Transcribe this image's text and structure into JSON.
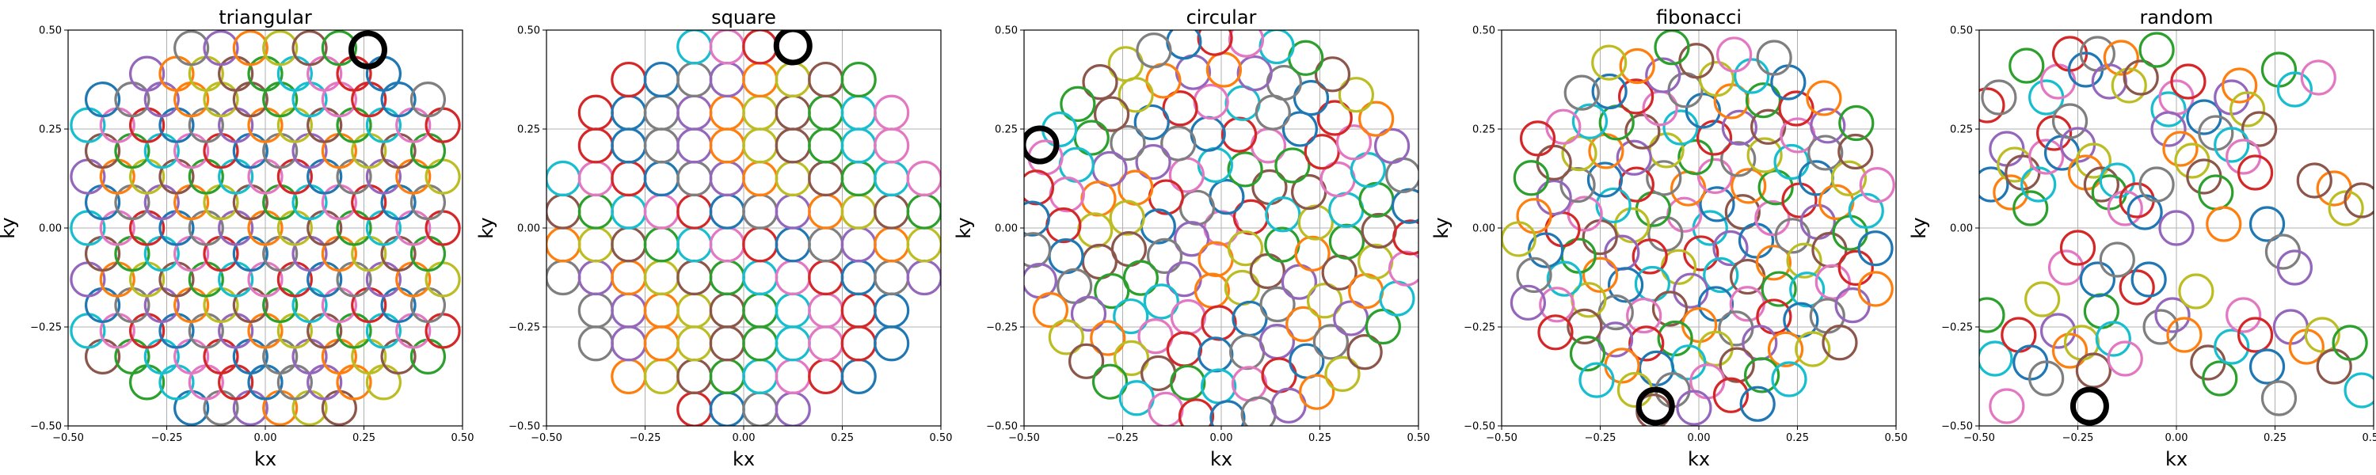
{
  "colors": {
    "cycle": [
      "#1f77b4",
      "#ff7f0e",
      "#2ca02c",
      "#d62728",
      "#9467bd",
      "#8c564b",
      "#e377c2",
      "#7f7f7f",
      "#bcbd22",
      "#17becf"
    ],
    "highlight": "#000000",
    "grid": "#b0b0b0"
  },
  "chart_data": [
    {
      "type": "scatter",
      "marker": "open-circle",
      "title": "triangular",
      "xlabel": "kx",
      "ylabel": "ky",
      "xlim": [
        -0.5,
        0.5
      ],
      "ylim": [
        -0.5,
        0.5
      ],
      "xticks": [
        "−0.50",
        "−0.25",
        "0.00",
        "0.25",
        "0.50"
      ],
      "yticks": [
        "−0.50",
        "−0.25",
        "0.00",
        "0.25",
        "0.50"
      ],
      "grid": true,
      "pattern": "triangular lattice, spacing 0.075, hexagonal window radius 0.45",
      "highlight": [
        0.26,
        0.45
      ]
    },
    {
      "type": "scatter",
      "marker": "open-circle",
      "title": "square",
      "xlabel": "kx",
      "ylabel": "ky",
      "xlim": [
        -0.5,
        0.5
      ],
      "ylim": [
        -0.5,
        0.5
      ],
      "xticks": [
        "−0.50",
        "−0.25",
        "0.00",
        "0.25",
        "0.50"
      ],
      "yticks": [
        "−0.50",
        "−0.25",
        "0.00",
        "0.25",
        "0.50"
      ],
      "grid": true,
      "pattern": "square lattice, spacing 0.083, circular window radius 0.5",
      "highlight": [
        0.125,
        0.46
      ]
    },
    {
      "type": "scatter",
      "marker": "open-circle",
      "title": "circular",
      "xlabel": "kx",
      "ylabel": "ky",
      "xlim": [
        -0.5,
        0.5
      ],
      "ylim": [
        -0.5,
        0.5
      ],
      "xticks": [
        "−0.50",
        "−0.25",
        "0.00",
        "0.25",
        "0.50"
      ],
      "yticks": [
        "−0.50",
        "−0.25",
        "0.00",
        "0.25",
        "0.50"
      ],
      "grid": true,
      "pattern": "concentric rings, radius 0.48",
      "highlight": [
        -0.46,
        0.21
      ]
    },
    {
      "type": "scatter",
      "marker": "open-circle",
      "title": "fibonacci",
      "xlabel": "kx",
      "ylabel": "ky",
      "xlim": [
        -0.5,
        0.5
      ],
      "ylim": [
        -0.5,
        0.5
      ],
      "xticks": [
        "−0.50",
        "−0.25",
        "0.00",
        "0.25",
        "0.50"
      ],
      "yticks": [
        "−0.50",
        "−0.25",
        "0.00",
        "0.25",
        "0.50"
      ],
      "grid": true,
      "pattern": "fibonacci spiral, radius 0.48",
      "highlight": [
        -0.11,
        -0.45
      ]
    },
    {
      "type": "scatter",
      "marker": "open-circle",
      "title": "random",
      "xlabel": "kx",
      "ylabel": "ky",
      "xlim": [
        -0.5,
        0.5
      ],
      "ylim": [
        -0.5,
        0.5
      ],
      "xticks": [
        "−0.50",
        "−0.25",
        "0.00",
        "0.25",
        "0.50"
      ],
      "yticks": [
        "−0.50",
        "−0.25",
        "0.00",
        "0.25",
        "0.50"
      ],
      "grid": true,
      "pattern": "uniform random points",
      "highlight": [
        -0.22,
        -0.45
      ],
      "points": [
        [
          -0.38,
          0.41
        ],
        [
          -0.33,
          0.33
        ],
        [
          -0.3,
          0.37
        ],
        [
          -0.27,
          0.44
        ],
        [
          -0.23,
          0.4
        ],
        [
          -0.2,
          0.44
        ],
        [
          -0.17,
          0.37
        ],
        [
          -0.14,
          0.43
        ],
        [
          -0.12,
          0.36
        ],
        [
          -0.09,
          0.38
        ],
        [
          -0.05,
          0.45
        ],
        [
          -0.02,
          0.3
        ],
        [
          0.0,
          0.33
        ],
        [
          0.03,
          0.37
        ],
        [
          0.07,
          0.28
        ],
        [
          0.1,
          0.24
        ],
        [
          0.14,
          0.33
        ],
        [
          0.16,
          0.36
        ],
        [
          0.18,
          0.3
        ],
        [
          0.21,
          0.25
        ],
        [
          0.26,
          0.4
        ],
        [
          0.3,
          0.35
        ],
        [
          0.36,
          0.38
        ],
        [
          -0.48,
          0.31
        ],
        [
          -0.47,
          0.11
        ],
        [
          -0.45,
          0.33
        ],
        [
          -0.43,
          0.2
        ],
        [
          -0.42,
          0.09
        ],
        [
          -0.41,
          0.16
        ],
        [
          -0.39,
          0.14
        ],
        [
          -0.37,
          0.05
        ],
        [
          -0.35,
          0.11
        ],
        [
          -0.33,
          0.18
        ],
        [
          -0.31,
          0.24
        ],
        [
          -0.29,
          0.19
        ],
        [
          -0.27,
          0.27
        ],
        [
          -0.25,
          0.21
        ],
        [
          -0.23,
          0.14
        ],
        [
          -0.21,
          0.17
        ],
        [
          -0.19,
          0.11
        ],
        [
          -0.17,
          0.09
        ],
        [
          -0.15,
          0.12
        ],
        [
          -0.13,
          0.05
        ],
        [
          -0.1,
          0.07
        ],
        [
          -0.08,
          0.04
        ],
        [
          -0.05,
          0.11
        ],
        [
          -0.02,
          0.25
        ],
        [
          0.01,
          0.2
        ],
        [
          0.04,
          0.17
        ],
        [
          0.07,
          0.13
        ],
        [
          0.1,
          0.09
        ],
        [
          0.14,
          0.21
        ],
        [
          0.17,
          0.18
        ],
        [
          0.2,
          0.14
        ],
        [
          0.23,
          0.01
        ],
        [
          0.27,
          -0.06
        ],
        [
          0.3,
          -0.1
        ],
        [
          0.4,
          0.1
        ],
        [
          0.43,
          0.05
        ],
        [
          0.47,
          0.07
        ],
        [
          -0.48,
          -0.22
        ],
        [
          -0.46,
          -0.33
        ],
        [
          -0.43,
          -0.45
        ],
        [
          -0.4,
          -0.27
        ],
        [
          -0.37,
          -0.34
        ],
        [
          -0.33,
          -0.38
        ],
        [
          -0.3,
          -0.26
        ],
        [
          -0.27,
          -0.31
        ],
        [
          -0.24,
          -0.29
        ],
        [
          -0.21,
          -0.36
        ],
        [
          -0.19,
          -0.21
        ],
        [
          -0.16,
          -0.28
        ],
        [
          -0.13,
          -0.33
        ],
        [
          -0.1,
          -0.15
        ],
        [
          -0.07,
          -0.13
        ],
        [
          -0.04,
          -0.25
        ],
        [
          -0.01,
          -0.22
        ],
        [
          0.02,
          -0.27
        ],
        [
          0.05,
          -0.16
        ],
        [
          0.08,
          -0.34
        ],
        [
          0.11,
          -0.38
        ],
        [
          0.14,
          -0.3
        ],
        [
          0.17,
          -0.22
        ],
        [
          0.2,
          -0.27
        ],
        [
          0.23,
          -0.35
        ],
        [
          0.26,
          -0.43
        ],
        [
          0.29,
          -0.25
        ],
        [
          0.33,
          -0.3
        ],
        [
          0.37,
          -0.27
        ],
        [
          0.4,
          -0.35
        ],
        [
          0.44,
          -0.29
        ],
        [
          0.47,
          -0.41
        ],
        [
          -0.28,
          -0.1
        ],
        [
          -0.25,
          -0.05
        ],
        [
          -0.2,
          -0.13
        ],
        [
          -0.15,
          -0.08
        ],
        [
          0.0,
          0.0
        ],
        [
          0.12,
          0.01
        ],
        [
          -0.34,
          -0.18
        ],
        [
          0.35,
          0.12
        ]
      ]
    }
  ]
}
